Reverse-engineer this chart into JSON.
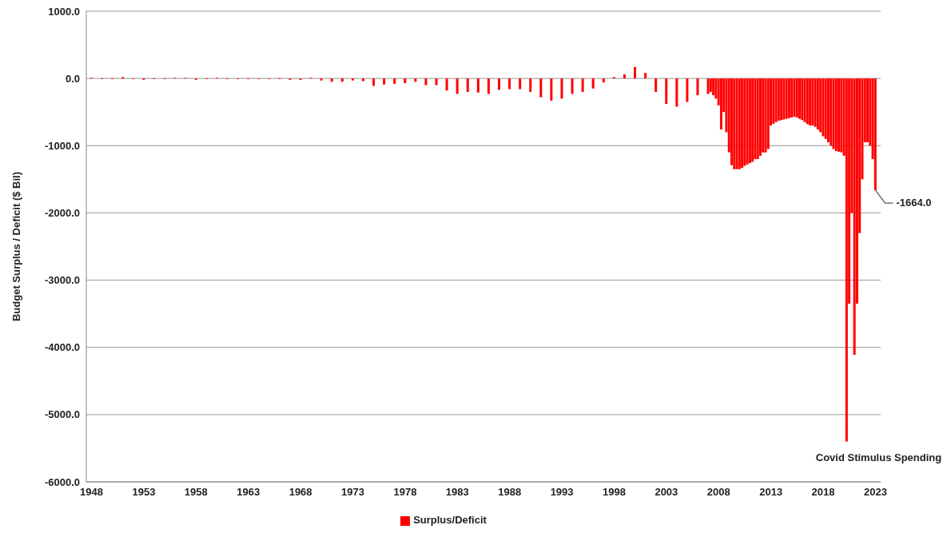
{
  "chart_data": {
    "type": "bar",
    "ylabel": "Budget Surplus / Deficit ($ Bil)",
    "x": [
      1948,
      1949,
      1950,
      1951,
      1952,
      1953,
      1954,
      1955,
      1956,
      1957,
      1958,
      1959,
      1960,
      1961,
      1962,
      1963,
      1964,
      1965,
      1966,
      1967,
      1968,
      1969,
      1970,
      1971,
      1972,
      1973,
      1974,
      1975,
      1976,
      1977,
      1978,
      1979,
      1980,
      1981,
      1982,
      1983,
      1984,
      1985,
      1986,
      1987,
      1988,
      1989,
      1990,
      1991,
      1992,
      1993,
      1994,
      1995,
      1996,
      1997,
      1998,
      1999,
      2000,
      2001,
      2002,
      2003,
      2004,
      2005,
      2006,
      2007,
      2007.25,
      2007.5,
      2007.75,
      2008,
      2008.25,
      2008.5,
      2008.75,
      2009,
      2009.25,
      2009.5,
      2009.75,
      2010,
      2010.25,
      2010.5,
      2010.75,
      2011,
      2011.25,
      2011.5,
      2011.75,
      2012,
      2012.25,
      2012.5,
      2012.75,
      2013,
      2013.25,
      2013.5,
      2013.75,
      2014,
      2014.25,
      2014.5,
      2014.75,
      2015,
      2015.25,
      2015.5,
      2015.75,
      2016,
      2016.25,
      2016.5,
      2016.75,
      2017,
      2017.25,
      2017.5,
      2017.75,
      2018,
      2018.25,
      2018.5,
      2018.75,
      2019,
      2019.25,
      2019.5,
      2019.75,
      2020,
      2020.25,
      2020.5,
      2020.75,
      2021,
      2021.25,
      2021.5,
      2021.75,
      2022,
      2022.25,
      2022.5,
      2022.75,
      2023
    ],
    "series": [
      {
        "name": "Surplus/Deficit",
        "color": "#ff0000",
        "values": [
          10,
          -10,
          -10,
          20,
          -10,
          -20,
          -10,
          -10,
          10,
          10,
          -20,
          -10,
          10,
          -10,
          -10,
          -10,
          -10,
          -10,
          -10,
          -20,
          -20,
          10,
          -30,
          -50,
          -50,
          -30,
          -40,
          -110,
          -90,
          -80,
          -70,
          -50,
          -100,
          -100,
          -180,
          -230,
          -200,
          -210,
          -230,
          -170,
          -160,
          -160,
          -200,
          -280,
          -330,
          -300,
          -230,
          -200,
          -150,
          -60,
          20,
          60,
          170,
          80,
          -200,
          -380,
          -420,
          -350,
          -250,
          -230,
          -200,
          -250,
          -300,
          -400,
          -760,
          -500,
          -800,
          -1100,
          -1290,
          -1350,
          -1350,
          -1350,
          -1330,
          -1300,
          -1280,
          -1260,
          -1240,
          -1200,
          -1200,
          -1150,
          -1100,
          -1100,
          -1050,
          -700,
          -675,
          -650,
          -630,
          -620,
          -610,
          -600,
          -590,
          -580,
          -570,
          -580,
          -600,
          -620,
          -650,
          -680,
          -700,
          -700,
          -720,
          -760,
          -800,
          -860,
          -900,
          -950,
          -1000,
          -1050,
          -1080,
          -1090,
          -1100,
          -1150,
          -5400,
          -3350,
          -2000,
          -4110,
          -3350,
          -2300,
          -1500,
          -950,
          -950,
          -1000,
          -1200,
          -1664
        ]
      }
    ],
    "xlim": [
      1947.5,
      2023.5
    ],
    "xticks": [
      1948,
      1953,
      1958,
      1963,
      1968,
      1973,
      1978,
      1983,
      1988,
      1993,
      1998,
      2003,
      2008,
      2013,
      2018,
      2023
    ],
    "ylim": [
      -6000,
      1000
    ],
    "yticks": [
      {
        "value": -6000,
        "label": "-6000.0"
      },
      {
        "value": -5000,
        "label": "-5000.0"
      },
      {
        "value": -4000,
        "label": "-4000.0"
      },
      {
        "value": -3000,
        "label": "-3000.0"
      },
      {
        "value": -2000,
        "label": "-2000.0"
      },
      {
        "value": -1000,
        "label": "-1000.0"
      },
      {
        "value": 0,
        "label": "0.0"
      },
      {
        "value": 1000,
        "label": "1000.0"
      }
    ],
    "grid": "y",
    "legend": "bottom",
    "annotations": [
      {
        "text": "-1664.0",
        "x": 2023,
        "y": -1664
      },
      {
        "text": "Covid Stimulus Spending",
        "x": 2020.25,
        "y": -5400
      }
    ]
  }
}
